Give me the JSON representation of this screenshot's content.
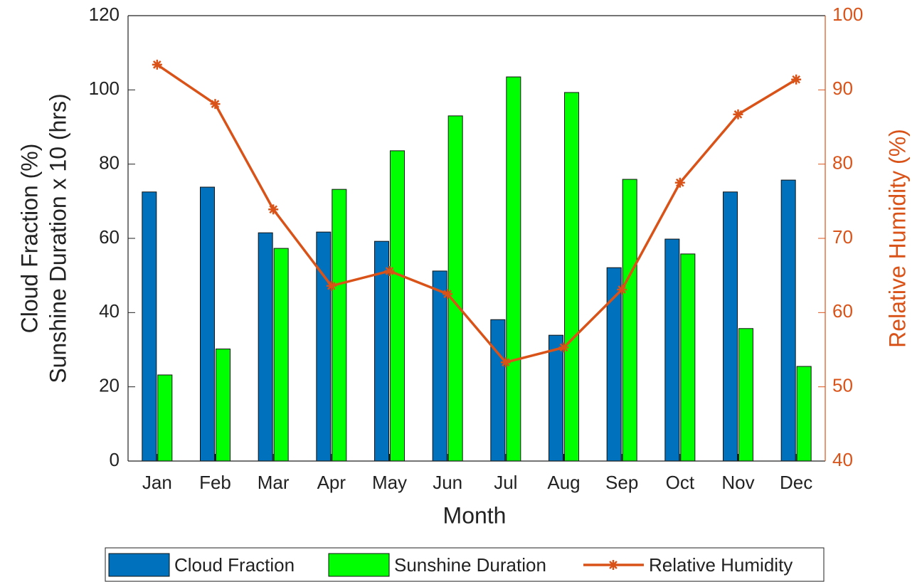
{
  "chart_data": {
    "type": "bar",
    "xlabel": "Month",
    "ylabel": [
      "Cloud Fraction (%)",
      "Sunshine Duration x 10 (hrs)"
    ],
    "y2label": "Relative Humidity (%)",
    "categories": [
      "Jan",
      "Feb",
      "Mar",
      "Apr",
      "May",
      "Jun",
      "Jul",
      "Aug",
      "Sep",
      "Oct",
      "Nov",
      "Dec"
    ],
    "series": [
      {
        "name": "Cloud Fraction",
        "type": "bar",
        "color": "#0072bd",
        "values": [
          72.5,
          73.8,
          61.5,
          61.7,
          59.2,
          51.2,
          38.1,
          33.9,
          52.1,
          59.8,
          72.5,
          75.7
        ]
      },
      {
        "name": "Sunshine Duration",
        "type": "bar",
        "color": "#00ff00",
        "values": [
          23.2,
          30.2,
          57.3,
          73.2,
          83.6,
          93,
          103.5,
          99.3,
          75.9,
          55.8,
          35.7,
          25.5
        ]
      },
      {
        "name": "Relative Humidity",
        "type": "line",
        "axis": "y2",
        "color": "#d95319",
        "values": [
          93.4,
          88.1,
          73.9,
          63.6,
          65.6,
          62.5,
          53.3,
          55.3,
          63.1,
          77.5,
          86.7,
          91.4
        ]
      }
    ],
    "ylim": [
      0,
      120
    ],
    "yticks": [
      0,
      20,
      40,
      60,
      80,
      100,
      120
    ],
    "y2lim": [
      40,
      100
    ],
    "y2ticks": [
      40,
      50,
      60,
      70,
      80,
      90,
      100
    ],
    "legend": "bottom"
  }
}
